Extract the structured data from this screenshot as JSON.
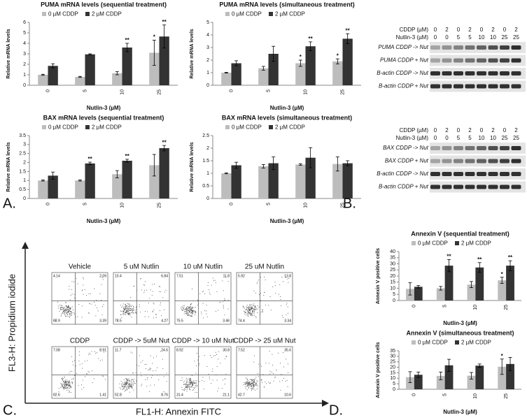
{
  "chart_data": [
    {
      "type": "bar",
      "title": "PUMA mRNA levels (sequential treatment)",
      "x_label": "Nutlin-3 (µM)",
      "y_label": "Relative mRNA levels",
      "categories": [
        "0",
        "5",
        "10",
        "25"
      ],
      "ylim": [
        0,
        6
      ],
      "yticks": [
        0,
        1,
        2,
        3,
        4,
        5,
        6
      ],
      "series": [
        {
          "name": "0 µM CDDP",
          "color": "#bdbdbd",
          "values": [
            1.0,
            0.8,
            1.15,
            3.1
          ],
          "errors": [
            0.05,
            0.05,
            0.15,
            1.2
          ],
          "annotations": [
            null,
            null,
            null,
            "*"
          ]
        },
        {
          "name": "2 µM CDDP",
          "color": "#333333",
          "values": [
            1.85,
            2.95,
            3.6,
            4.65
          ],
          "errors": [
            0.2,
            0.05,
            0.4,
            1.1
          ],
          "annotations": [
            null,
            null,
            "**",
            "**"
          ]
        }
      ]
    },
    {
      "type": "bar",
      "title": "PUMA mRNA levels (simultaneous treatment)",
      "x_label": "Nutlin-3 (µM)",
      "y_label": "Relative mRNA levels",
      "categories": [
        "0",
        "5",
        "10",
        "25"
      ],
      "ylim": [
        0,
        5
      ],
      "yticks": [
        0,
        1,
        2,
        3,
        4,
        5
      ],
      "series": [
        {
          "name": "0 µM CDDP",
          "color": "#bdbdbd",
          "values": [
            1.0,
            1.35,
            1.75,
            1.9
          ],
          "errors": [
            0.03,
            0.15,
            0.25,
            0.2
          ],
          "annotations": [
            null,
            null,
            "*",
            "*"
          ]
        },
        {
          "name": "2 µM CDDP",
          "color": "#333333",
          "values": [
            1.75,
            2.5,
            3.1,
            3.7
          ],
          "errors": [
            0.2,
            0.6,
            0.35,
            0.4
          ],
          "annotations": [
            null,
            null,
            "**",
            "**"
          ]
        }
      ]
    },
    {
      "type": "bar",
      "title": "BAX mRNA levels (sequential treatment)",
      "x_label": "Nutlin-3 (µM)",
      "y_label": "Relative mRNA levels",
      "categories": [
        "0",
        "5",
        "10",
        "25"
      ],
      "ylim": [
        0,
        3.5
      ],
      "yticks": [
        0,
        0.5,
        1,
        1.5,
        2,
        2.5,
        3,
        3.5
      ],
      "series": [
        {
          "name": "0 µM CDDP",
          "color": "#bdbdbd",
          "values": [
            1.0,
            1.0,
            1.35,
            1.85
          ],
          "errors": [
            0.03,
            0.03,
            0.2,
            0.6
          ],
          "annotations": [
            null,
            null,
            null,
            null
          ]
        },
        {
          "name": "2 µM CDDP",
          "color": "#333333",
          "values": [
            1.27,
            1.95,
            2.1,
            2.8
          ],
          "errors": [
            0.2,
            0.07,
            0.08,
            0.15
          ],
          "annotations": [
            null,
            "**",
            "**",
            "**"
          ]
        }
      ]
    },
    {
      "type": "bar",
      "title": "BAX mRNA levels (simultaneous treatment)",
      "x_label": "Nutlin-3 (µM)",
      "y_label": "Relative mRNA levels",
      "categories": [
        "0",
        "5",
        "10",
        "25"
      ],
      "ylim": [
        0,
        2.5
      ],
      "yticks": [
        0,
        0.5,
        1,
        1.5,
        2,
        2.5
      ],
      "series": [
        {
          "name": "0 µM CDDP",
          "color": "#bdbdbd",
          "values": [
            1.0,
            1.28,
            1.35,
            1.37
          ],
          "errors": [
            0.02,
            0.07,
            0.03,
            0.28
          ],
          "annotations": [
            null,
            null,
            null,
            null
          ]
        },
        {
          "name": "2 µM CDDP",
          "color": "#333333",
          "values": [
            1.32,
            1.4,
            1.62,
            1.4
          ],
          "errors": [
            0.12,
            0.25,
            0.4,
            0.1
          ],
          "annotations": [
            null,
            null,
            null,
            null
          ]
        }
      ]
    },
    {
      "type": "bar",
      "title": "Annexin V (sequential treatment)",
      "x_label": "Nutlin-3 (µM)",
      "y_label": "Annexin V positive cells",
      "categories": [
        "0",
        "5",
        "10",
        "25"
      ],
      "ylim": [
        0,
        40
      ],
      "yticks": [
        0,
        5,
        10,
        15,
        20,
        25,
        30,
        35,
        40
      ],
      "series": [
        {
          "name": "0 µM CDDP",
          "color": "#bdbdbd",
          "values": [
            9.5,
            10,
            13,
            16.5
          ],
          "errors": [
            5,
            1.5,
            2.5,
            2.5
          ],
          "annotations": [
            null,
            null,
            null,
            "*"
          ]
        },
        {
          "name": "2 µM CDDP",
          "color": "#333333",
          "values": [
            11.2,
            28.5,
            27,
            28.5
          ],
          "errors": [
            1,
            5,
            4,
            4
          ],
          "annotations": [
            null,
            "**",
            "**",
            "**"
          ]
        }
      ]
    },
    {
      "type": "bar",
      "title": "Annexin V (simultaneous treatment)",
      "x_label": "Nutlin-3 (µM)",
      "y_label": "Annexin V positive cells",
      "categories": [
        "0",
        "5",
        "10",
        "25"
      ],
      "ylim": [
        0,
        35
      ],
      "yticks": [
        0,
        5,
        10,
        15,
        20,
        25,
        30,
        35
      ],
      "series": [
        {
          "name": "0 µM CDDP",
          "color": "#bdbdbd",
          "values": [
            11,
            12.2,
            12.3,
            20.5
          ],
          "errors": [
            5,
            3.5,
            3,
            7
          ],
          "annotations": [
            null,
            null,
            null,
            "*"
          ]
        },
        {
          "name": "2 µM CDDP",
          "color": "#333333",
          "values": [
            13.2,
            21.8,
            21.5,
            23
          ],
          "errors": [
            2.5,
            5.5,
            1.5,
            6
          ],
          "annotations": [
            null,
            null,
            null,
            null
          ]
        }
      ]
    }
  ],
  "panel_labels": [
    "A.",
    "B.",
    "C.",
    "D."
  ],
  "blots": [
    {
      "header_rows": [
        {
          "label": "CDDP (µM)",
          "lanes": [
            0,
            2,
            0,
            2,
            0,
            2,
            0,
            2
          ]
        },
        {
          "label": "Nutlin-3 (µM)",
          "lanes": [
            0,
            0,
            5,
            5,
            10,
            10,
            25,
            25
          ]
        }
      ],
      "rows": [
        "PUMA CDDP -> Nut",
        "PUMA CDDP + Nut",
        "B-actin CDDP -> Nut",
        "B-actin CDDP + Nut"
      ]
    },
    {
      "header_rows": [
        {
          "label": "CDDP (µM)",
          "lanes": [
            0,
            2,
            0,
            2,
            0,
            2,
            0,
            2
          ]
        },
        {
          "label": "Nutlin-3 (µM)",
          "lanes": [
            0,
            0,
            5,
            5,
            10,
            10,
            25,
            25
          ]
        }
      ],
      "rows": [
        "BAX CDDP -> Nut",
        "BAX CDDP + Nut",
        "B-actin CDDP -> Nut",
        "B-actin CDDP + Nut"
      ]
    }
  ],
  "flow": {
    "y_label": "FL3-H: Propidium iodide",
    "x_label": "FL1-H: Annexin FITC",
    "plots": [
      {
        "title": "Vehicle",
        "ul": 4.14,
        "ur": 2.09,
        "ll": 88.9,
        "lr": 3.39
      },
      {
        "title": "5 uM Nutlin",
        "ul": 10.4,
        "ur": 6.84,
        "ll": 78.5,
        "lr": 4.27
      },
      {
        "title": "10 uM Nutlin",
        "ul": 7.51,
        "ur": 11.8,
        "ll": 75.5,
        "lr": 3.46
      },
      {
        "title": "25 uM Nutlin",
        "ul": 5.92,
        "ur": 13.8,
        "ll": 74.4,
        "lr": 3.34
      },
      {
        "title": "CDDP",
        "ul": 7.08,
        "ur": 8.91,
        "ll": 82.6,
        "lr": 1.41
      },
      {
        "title": "CDDP -> 5uM Nut",
        "ul": 11.7,
        "ur": 24.6,
        "ll": 52.8,
        "lr": 8.76
      },
      {
        "title": "CDDP -> 10 uM Nut",
        "ul": 8.92,
        "ur": 30.8,
        "ll": 31.4,
        "lr": 21.1
      },
      {
        "title": "CDDP -> 25 uM Nut",
        "ul": 7.52,
        "ur": 35.6,
        "ll": 42.7,
        "lr": 10.6
      }
    ]
  }
}
